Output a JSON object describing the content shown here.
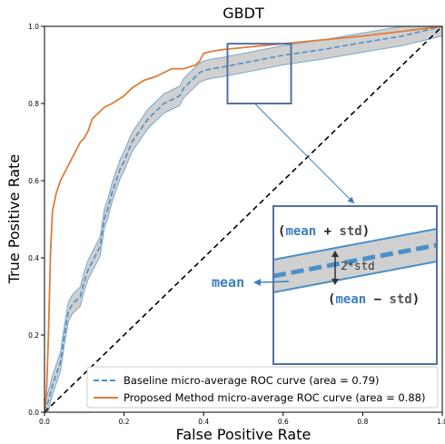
{
  "chart_data": {
    "type": "line",
    "title": "GBDT",
    "xlabel": "False Positive Rate",
    "ylabel": "True Positive Rate",
    "xlim": [
      0.0,
      1.0
    ],
    "ylim": [
      0.0,
      1.0
    ],
    "xticks": [
      "0.0",
      "0.2",
      "0.4",
      "0.6",
      "0.8",
      "1.0"
    ],
    "yticks": [
      "0.0",
      "0.2",
      "0.4",
      "0.6",
      "0.8",
      "1.0"
    ],
    "grid": false,
    "legend_position": "lower-right",
    "series": [
      {
        "name": "Baseline micro-average ROC curve (area = 0.79)",
        "style": "dashed",
        "color": "#4a90c9",
        "band_color": "#a9a9a9",
        "x": [
          0.0,
          0.01,
          0.02,
          0.04,
          0.05,
          0.06,
          0.07,
          0.08,
          0.09,
          0.1,
          0.11,
          0.12,
          0.13,
          0.14,
          0.15,
          0.16,
          0.17,
          0.18,
          0.19,
          0.2,
          0.22,
          0.24,
          0.26,
          0.28,
          0.3,
          0.32,
          0.34,
          0.35,
          0.36,
          0.37,
          0.38,
          0.39,
          0.4,
          0.42,
          0.45,
          0.5,
          0.55,
          0.6,
          0.7,
          0.8,
          0.9,
          1.0
        ],
        "y": [
          0.0,
          0.03,
          0.07,
          0.13,
          0.2,
          0.26,
          0.28,
          0.29,
          0.3,
          0.34,
          0.37,
          0.39,
          0.41,
          0.43,
          0.5,
          0.53,
          0.57,
          0.6,
          0.63,
          0.65,
          0.7,
          0.73,
          0.76,
          0.78,
          0.8,
          0.81,
          0.82,
          0.84,
          0.85,
          0.86,
          0.87,
          0.88,
          0.885,
          0.89,
          0.895,
          0.905,
          0.915,
          0.925,
          0.94,
          0.958,
          0.975,
          1.0
        ],
        "std": 0.025
      },
      {
        "name": "Proposed Method micro-average ROC curve (area = 0.88)",
        "style": "solid",
        "color": "#e07b39",
        "x": [
          0.0,
          0.005,
          0.01,
          0.015,
          0.02,
          0.03,
          0.04,
          0.05,
          0.06,
          0.07,
          0.08,
          0.09,
          0.1,
          0.11,
          0.12,
          0.13,
          0.14,
          0.15,
          0.17,
          0.2,
          0.22,
          0.25,
          0.28,
          0.3,
          0.32,
          0.35,
          0.38,
          0.39,
          0.4,
          0.42,
          0.45,
          0.5,
          0.6,
          0.7,
          0.8,
          0.9,
          1.0
        ],
        "y": [
          0.0,
          0.05,
          0.2,
          0.41,
          0.52,
          0.57,
          0.6,
          0.62,
          0.64,
          0.66,
          0.68,
          0.7,
          0.71,
          0.73,
          0.76,
          0.77,
          0.78,
          0.79,
          0.8,
          0.82,
          0.84,
          0.86,
          0.87,
          0.88,
          0.89,
          0.89,
          0.9,
          0.91,
          0.93,
          0.935,
          0.94,
          0.945,
          0.955,
          0.965,
          0.975,
          0.987,
          1.0
        ]
      },
      {
        "name": "",
        "style": "dashed",
        "color": "#000000",
        "x": [
          0.0,
          1.0
        ],
        "y": [
          0.0,
          1.0
        ]
      }
    ],
    "annotation": {
      "zoom_box": {
        "x": [
          0.46,
          0.62
        ],
        "y": [
          0.8,
          0.955
        ]
      },
      "upper_label_parts": [
        "(",
        "mean",
        " + ",
        "std",
        ")"
      ],
      "lower_label_parts": [
        "(",
        "mean",
        " − ",
        "std",
        ")"
      ],
      "band_label": "2*std",
      "mean_label": "mean",
      "box_color": "#5670a0",
      "accent_color": "#3a7fc0"
    }
  }
}
